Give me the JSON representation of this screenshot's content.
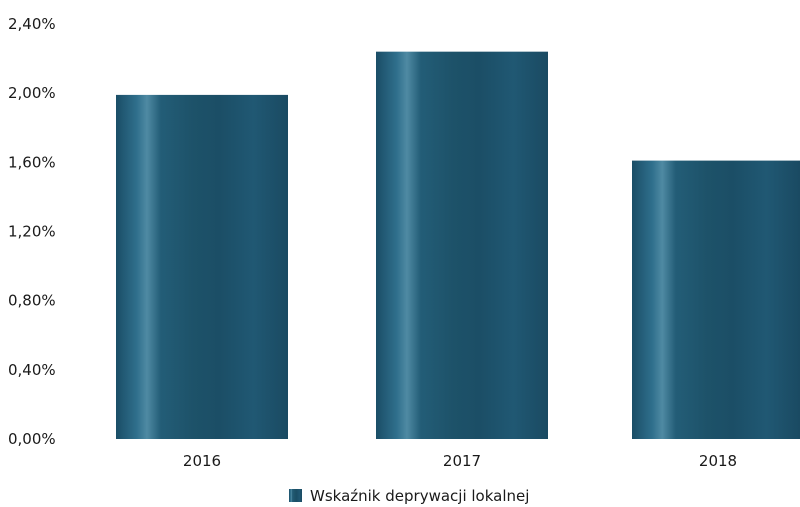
{
  "chart_data": {
    "type": "bar",
    "categories": [
      "2016",
      "2017",
      "2018"
    ],
    "series": [
      {
        "name": "Wskaźnik deprywacji lokalnej",
        "values": [
          1.99,
          2.24,
          1.61
        ]
      }
    ],
    "ylim": [
      0,
      2.4
    ],
    "yticks": [
      "0,00%",
      "0,40%",
      "0,80%",
      "1,20%",
      "1,60%",
      "2,00%",
      "2,40%"
    ],
    "ytick_values": [
      0,
      0.4,
      0.8,
      1.2,
      1.6,
      2.0,
      2.4
    ],
    "grid": false,
    "legend_position": "bottom-center",
    "colors": {
      "bar": "#1f5670",
      "bar_highlight": "#3d7c97",
      "bar_dark": "#17455b"
    }
  }
}
